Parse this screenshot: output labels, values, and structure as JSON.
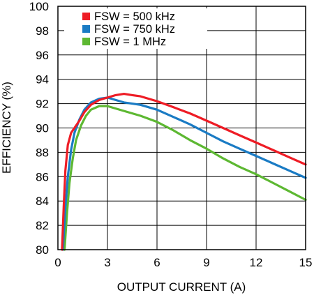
{
  "chart_data": {
    "type": "line",
    "xlabel": "OUTPUT CURRENT (A)",
    "ylabel": "EFFICIENCY (%)",
    "xlim": [
      0,
      15
    ],
    "ylim": [
      80,
      100
    ],
    "xticks": [
      "0",
      "3",
      "6",
      "9",
      "12",
      "15"
    ],
    "yticks": [
      "80",
      "82",
      "84",
      "86",
      "88",
      "90",
      "92",
      "94",
      "96",
      "98",
      "100"
    ],
    "grid": true,
    "legend_position": "top-left",
    "series": [
      {
        "name": "FSW = 500 kHz",
        "color": "#ee1c25",
        "x": [
          0.25,
          0.35,
          0.45,
          0.6,
          0.8,
          1.0,
          1.3,
          1.6,
          2.0,
          2.5,
          3.0,
          3.5,
          4.0,
          4.5,
          5.0,
          6.0,
          7.0,
          8.0,
          9.0,
          10.0,
          11.0,
          12.0,
          13.0,
          14.0,
          15.0
        ],
        "y": [
          80.0,
          83.5,
          86.5,
          88.6,
          89.6,
          90.0,
          90.6,
          91.3,
          91.9,
          92.3,
          92.5,
          92.7,
          92.8,
          92.7,
          92.6,
          92.2,
          91.7,
          91.2,
          90.6,
          90.0,
          89.4,
          88.8,
          88.2,
          87.6,
          87.0
        ]
      },
      {
        "name": "FSW = 750 kHz",
        "color": "#1a7bc4",
        "x": [
          0.3,
          0.45,
          0.6,
          0.8,
          1.0,
          1.3,
          1.6,
          2.0,
          2.5,
          3.0,
          3.5,
          4.0,
          4.5,
          5.0,
          6.0,
          7.0,
          8.0,
          9.0,
          10.0,
          11.0,
          12.0,
          13.0,
          14.0,
          15.0
        ],
        "y": [
          80.0,
          83.5,
          86.0,
          88.2,
          89.6,
          90.7,
          91.5,
          92.1,
          92.4,
          92.5,
          92.3,
          92.1,
          92.0,
          91.9,
          91.5,
          90.9,
          90.3,
          89.6,
          88.9,
          88.3,
          87.7,
          87.1,
          86.5,
          85.9
        ]
      },
      {
        "name": "FSW = 1 MHz",
        "color": "#5db832",
        "x": [
          0.4,
          0.55,
          0.7,
          0.9,
          1.1,
          1.4,
          1.7,
          2.0,
          2.5,
          3.0,
          3.5,
          4.0,
          5.0,
          6.0,
          7.0,
          8.0,
          9.0,
          10.0,
          11.0,
          12.0,
          13.0,
          14.0,
          15.0
        ],
        "y": [
          80.0,
          83.0,
          85.5,
          87.5,
          89.0,
          90.2,
          91.0,
          91.5,
          91.8,
          91.8,
          91.6,
          91.4,
          91.0,
          90.5,
          89.8,
          89.0,
          88.3,
          87.5,
          86.8,
          86.2,
          85.5,
          84.8,
          84.1
        ]
      }
    ]
  }
}
